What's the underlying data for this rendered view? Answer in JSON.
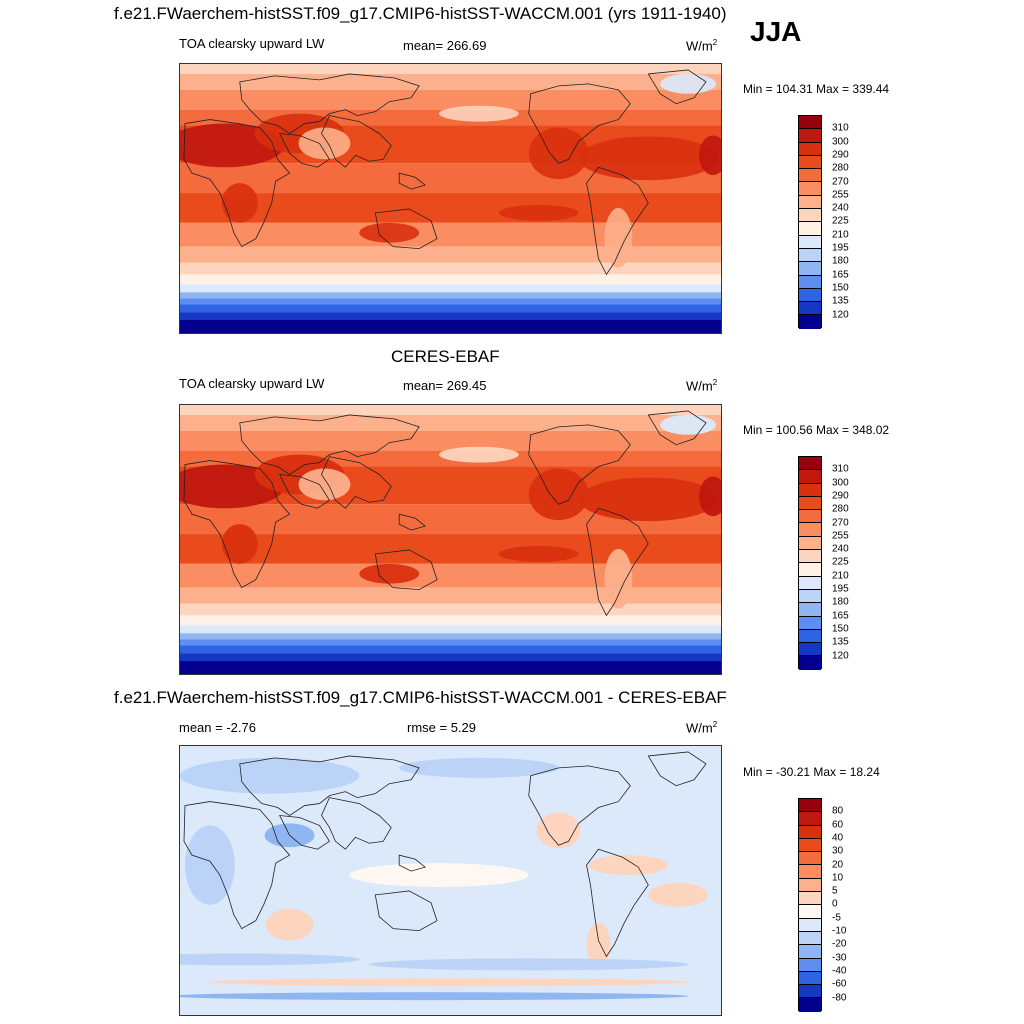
{
  "figure": {
    "title": "f.e21.FWaerchem-histSST.f09_g17.CMIP6-histSST-WACCM.001 (yrs 1911-1940)",
    "season": "JJA"
  },
  "panels": [
    {
      "id": "model",
      "variable": "TOA clearsky upward LW",
      "stat_text": "mean= 266.69",
      "units_base": "W/m",
      "units_exp": "2",
      "minmax_text": "Min = 104.31 Max = 339.44"
    },
    {
      "id": "obs",
      "heading": "CERES-EBAF",
      "variable": "TOA clearsky upward LW",
      "stat_text": "mean= 269.45",
      "units_base": "W/m",
      "units_exp": "2",
      "minmax_text": "Min = 100.56 Max = 348.02"
    },
    {
      "id": "diff",
      "heading": "f.e21.FWaerchem-histSST.f09_g17.CMIP6-histSST-WACCM.001 - CERES-EBAF",
      "stat_text": "mean =  -2.76",
      "rmse_text": "rmse =   5.29",
      "units_base": "W/m",
      "units_exp": "2",
      "minmax_text": "Min = -30.21 Max =  18.24"
    }
  ],
  "colorbars": {
    "absolute": {
      "ticks": [
        "310",
        "300",
        "290",
        "280",
        "270",
        "255",
        "240",
        "225",
        "210",
        "195",
        "180",
        "165",
        "150",
        "135",
        "120"
      ],
      "colors": [
        "#99000d",
        "#c0170f",
        "#d9300f",
        "#ea4b1c",
        "#f46b3e",
        "#fa8d62",
        "#fcb08b",
        "#fdd4bd",
        "#fff1e6",
        "#dbe9fb",
        "#bad3f6",
        "#8fb6f0",
        "#5e8ff0",
        "#2f63e6",
        "#1438c4",
        "#04008e"
      ]
    },
    "difference": {
      "ticks": [
        "80",
        "60",
        "40",
        "30",
        "20",
        "10",
        "5",
        "0",
        "-5",
        "-10",
        "-20",
        "-30",
        "-40",
        "-60",
        "-80"
      ],
      "colors": [
        "#99000d",
        "#c0170f",
        "#d9300f",
        "#ea4b1c",
        "#f46b3e",
        "#fa8d62",
        "#fcb08b",
        "#fdd4bd",
        "#fff8f2",
        "#dbe9fb",
        "#bad3f6",
        "#8fb6f0",
        "#5e8ff0",
        "#2f63e6",
        "#1438c4",
        "#04008e"
      ]
    }
  }
}
